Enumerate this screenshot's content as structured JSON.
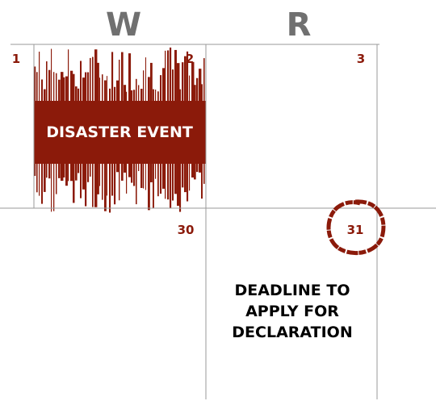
{
  "columns": [
    "W",
    "R"
  ],
  "days": [
    "1",
    "2",
    "3",
    "30",
    "31"
  ],
  "event": "DISASTER EVENT",
  "deadline": [
    "DEADLINE TO",
    "APPLY FOR",
    "DECLARATION"
  ]
}
